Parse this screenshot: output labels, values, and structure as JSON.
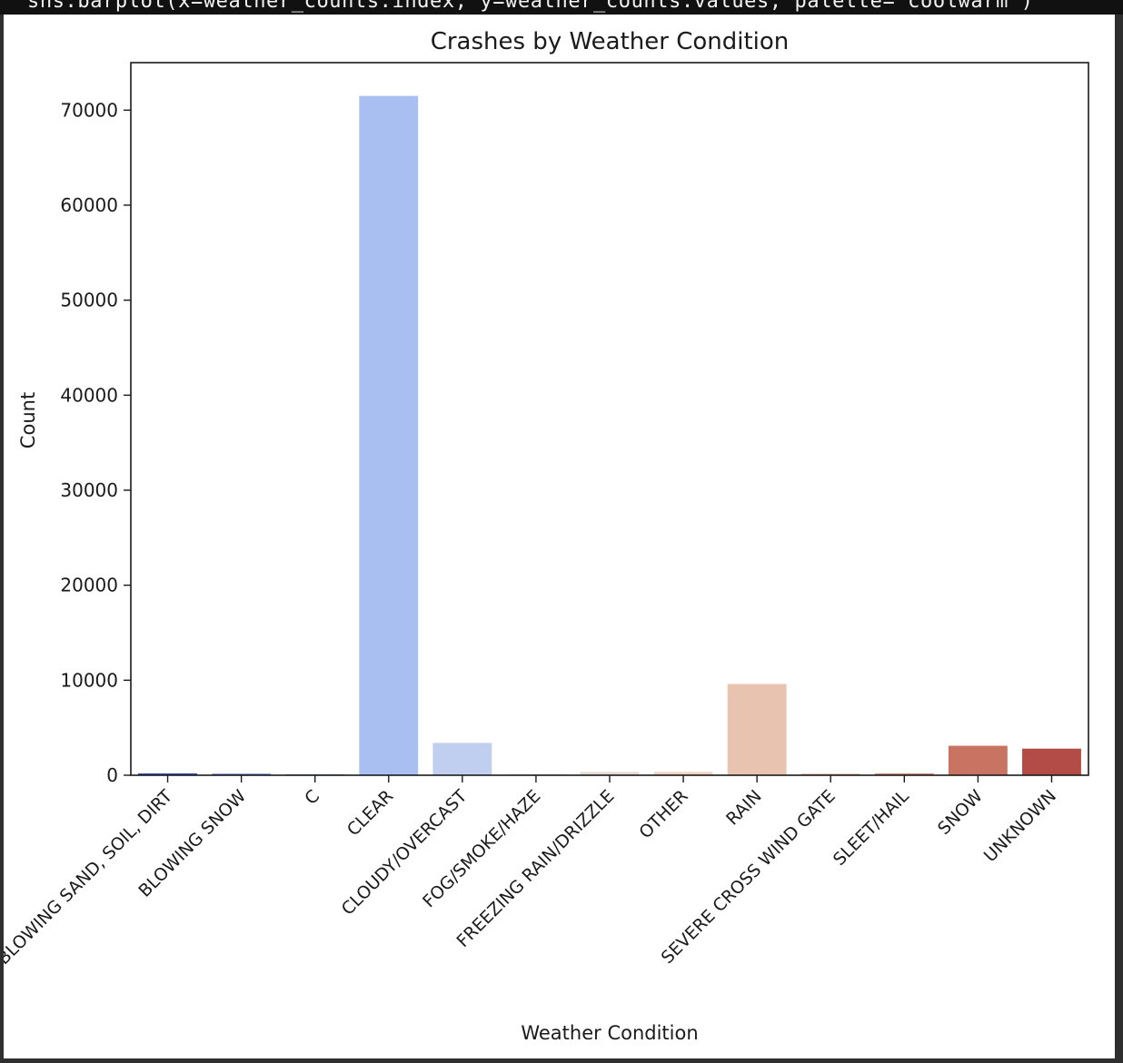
{
  "code_line": "sns.barplot(x=weather_counts.index, y=weather_counts.values, palette='coolwarm')",
  "chart_data": {
    "type": "bar",
    "title": "Crashes by Weather Condition",
    "xlabel": "Weather Condition",
    "ylabel": "Count",
    "ylim": [
      0,
      75000
    ],
    "yticks": [
      0,
      10000,
      20000,
      30000,
      40000,
      50000,
      60000,
      70000
    ],
    "grid": false,
    "categories": [
      "BLOWING SAND, SOIL, DIRT",
      "BLOWING SNOW",
      "C",
      "CLEAR",
      "CLOUDY/OVERCAST",
      "FOG/SMOKE/HAZE",
      "FREEZING RAIN/DRIZZLE",
      "OTHER",
      "RAIN",
      "SEVERE CROSS WIND GATE",
      "SLEET/HAIL",
      "SNOW",
      "UNKNOWN"
    ],
    "values": [
      200,
      150,
      100,
      71500,
      3400,
      100,
      350,
      350,
      9600,
      150,
      200,
      3100,
      2800
    ],
    "colors": [
      "#3b4cc0",
      "#4f69d9",
      "#6788ee",
      "#adc0f0",
      "#c2cff0",
      "#dddcdc",
      "#e4dbd4",
      "#eed3c4",
      "#e8c3af",
      "#f0a58a",
      "#e8836a",
      "#c7705f",
      "#b40426"
    ],
    "bar_colors_observed": [
      "#3c4ec2",
      "#4a63d3",
      "#6b8df0",
      "#aabff1",
      "#c0cff0",
      "#d5dbe5",
      "#e3dad1",
      "#ecd4c4",
      "#e8c3b0",
      "#e0a58c",
      "#d38a73",
      "#c97462",
      "#b34b47"
    ]
  }
}
